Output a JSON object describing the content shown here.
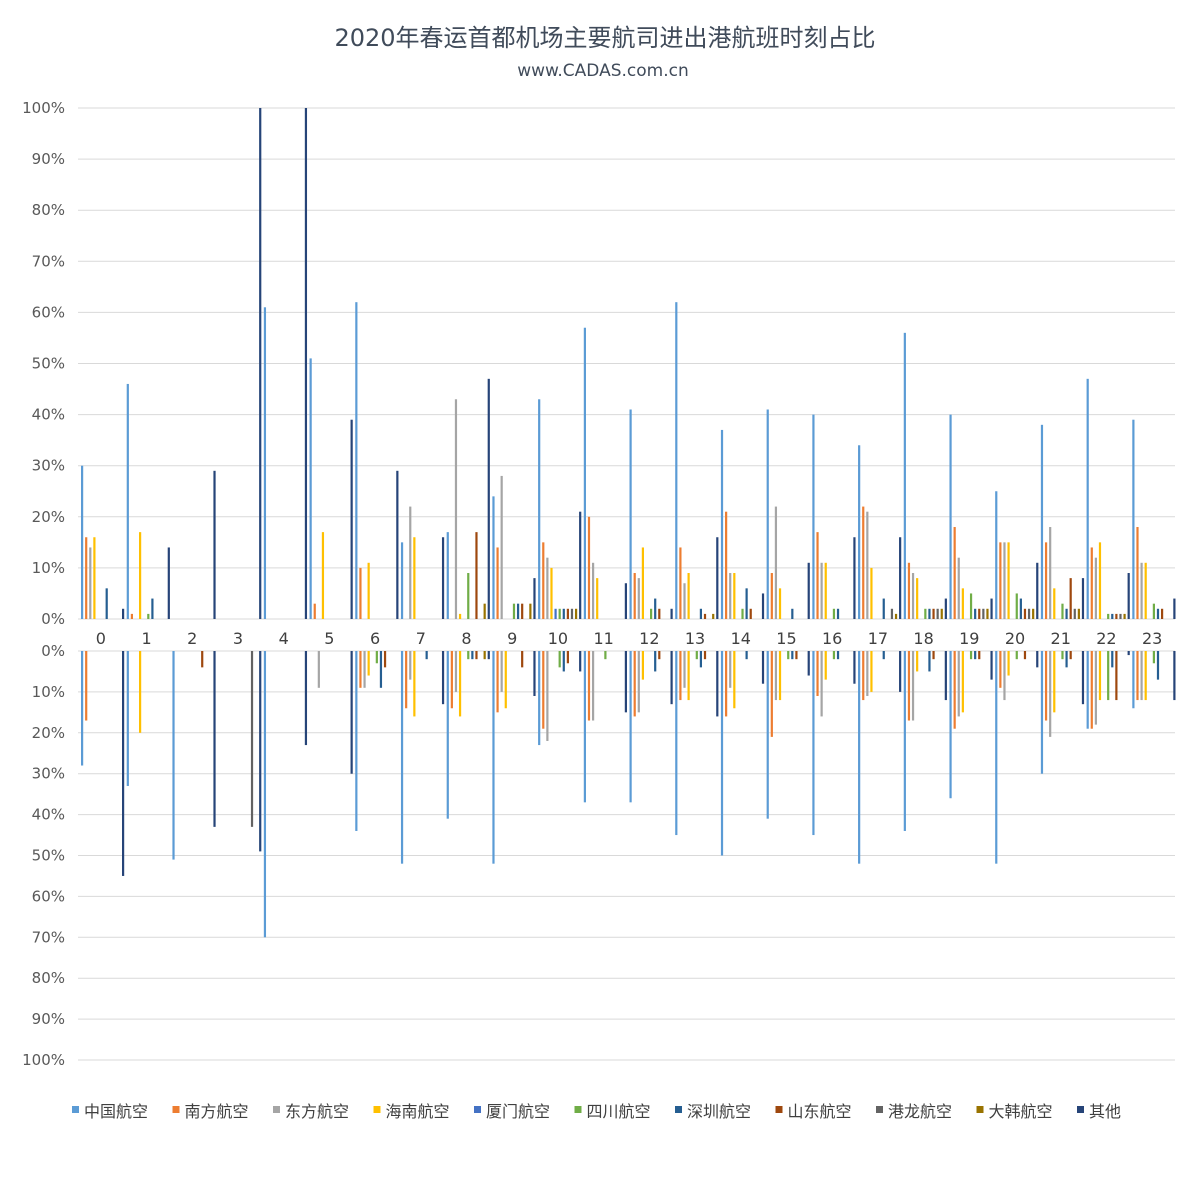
{
  "chart_data": {
    "type": "bar",
    "title": "2020年春运首都机场主要航司进出港航班时刻占比",
    "subtitle": "www.CADAS.com.cn",
    "categories": [
      "0",
      "1",
      "2",
      "3",
      "4",
      "5",
      "6",
      "7",
      "8",
      "9",
      "10",
      "11",
      "12",
      "13",
      "14",
      "15",
      "16",
      "17",
      "18",
      "19",
      "20",
      "21",
      "22",
      "23"
    ],
    "ylim": [
      0,
      100
    ],
    "ytick_labels": [
      "0%",
      "10%",
      "20%",
      "30%",
      "40%",
      "50%",
      "60%",
      "70%",
      "80%",
      "90%",
      "100%"
    ],
    "panels": [
      "top",
      "bottom"
    ],
    "legend_position": "bottom",
    "grid": true,
    "series": [
      {
        "name": "中国航空",
        "color": "#5b9bd5",
        "top": [
          30,
          46,
          0,
          0,
          61,
          51,
          62,
          15,
          17,
          24,
          43,
          57,
          41,
          62,
          37,
          41,
          40,
          34,
          56,
          40,
          25,
          38,
          47,
          39
        ],
        "bottom": [
          28,
          33,
          51,
          0,
          70,
          0,
          44,
          52,
          41,
          52,
          23,
          37,
          37,
          45,
          50,
          41,
          45,
          52,
          44,
          36,
          52,
          30,
          19,
          14
        ]
      },
      {
        "name": "南方航空",
        "color": "#ed7d31",
        "top": [
          16,
          1,
          0,
          0,
          0,
          3,
          10,
          0,
          0,
          14,
          15,
          20,
          9,
          14,
          21,
          9,
          17,
          22,
          11,
          18,
          15,
          15,
          14,
          18
        ],
        "bottom": [
          17,
          0,
          0,
          0,
          0,
          0,
          9,
          14,
          14,
          15,
          19,
          17,
          16,
          12,
          16,
          21,
          11,
          12,
          17,
          19,
          9,
          17,
          19,
          12
        ]
      },
      {
        "name": "东方航空",
        "color": "#a5a5a5",
        "top": [
          14,
          0,
          0,
          0,
          0,
          0,
          0,
          22,
          43,
          28,
          12,
          11,
          8,
          7,
          9,
          22,
          11,
          21,
          9,
          12,
          15,
          18,
          12,
          11
        ],
        "bottom": [
          0,
          0,
          0,
          0,
          0,
          9,
          9,
          7,
          10,
          10,
          22,
          17,
          15,
          9,
          9,
          12,
          16,
          11,
          17,
          16,
          12,
          21,
          18,
          12
        ]
      },
      {
        "name": "海南航空",
        "color": "#ffc000",
        "top": [
          16,
          17,
          0,
          0,
          0,
          17,
          11,
          16,
          1,
          0,
          10,
          8,
          14,
          9,
          9,
          6,
          11,
          10,
          8,
          6,
          15,
          6,
          15,
          11
        ],
        "bottom": [
          0,
          20,
          0,
          0,
          0,
          0,
          6,
          16,
          16,
          14,
          0,
          0,
          7,
          12,
          14,
          12,
          7,
          10,
          5,
          15,
          6,
          15,
          12,
          12
        ]
      },
      {
        "name": "厦门航空",
        "color": "#4472c4",
        "top": [
          0,
          0,
          0,
          0,
          0,
          0,
          0,
          0,
          0,
          0,
          2,
          0,
          0,
          0,
          0,
          0,
          0,
          0,
          0,
          0,
          0,
          0,
          0,
          0
        ],
        "bottom": [
          0,
          0,
          0,
          0,
          0,
          0,
          0,
          0,
          0,
          0,
          0,
          0,
          0,
          0,
          0,
          0,
          0,
          0,
          0,
          0,
          0,
          0,
          0,
          0
        ]
      },
      {
        "name": "四川航空",
        "color": "#70ad47",
        "top": [
          0,
          1,
          0,
          0,
          0,
          0,
          0,
          0,
          9,
          3,
          2,
          0,
          2,
          0,
          2,
          0,
          2,
          0,
          2,
          5,
          5,
          3,
          1,
          3
        ],
        "bottom": [
          0,
          0,
          0,
          0,
          0,
          0,
          3,
          0,
          2,
          0,
          4,
          2,
          0,
          2,
          0,
          2,
          2,
          0,
          0,
          2,
          2,
          2,
          12,
          3
        ]
      },
      {
        "name": "深圳航空",
        "color": "#255e91",
        "top": [
          6,
          4,
          0,
          0,
          0,
          0,
          0,
          0,
          0,
          3,
          2,
          0,
          4,
          2,
          6,
          2,
          2,
          4,
          2,
          2,
          4,
          2,
          1,
          2
        ],
        "bottom": [
          0,
          0,
          0,
          0,
          0,
          0,
          9,
          2,
          2,
          0,
          5,
          0,
          5,
          4,
          2,
          2,
          2,
          2,
          5,
          2,
          0,
          4,
          4,
          7
        ]
      },
      {
        "name": "山东航空",
        "color": "#9e480e",
        "top": [
          0,
          0,
          0,
          0,
          0,
          0,
          0,
          0,
          17,
          3,
          2,
          0,
          2,
          1,
          2,
          0,
          0,
          0,
          2,
          2,
          2,
          8,
          1,
          2
        ],
        "bottom": [
          0,
          0,
          4,
          0,
          0,
          0,
          4,
          0,
          2,
          4,
          3,
          0,
          2,
          2,
          0,
          2,
          0,
          0,
          2,
          2,
          2,
          2,
          12,
          0
        ]
      },
      {
        "name": "港龙航空",
        "color": "#636363",
        "top": [
          0,
          0,
          0,
          0,
          0,
          0,
          0,
          0,
          0,
          0,
          2,
          0,
          0,
          0,
          0,
          0,
          0,
          2,
          2,
          2,
          2,
          2,
          1,
          0
        ],
        "bottom": [
          0,
          0,
          0,
          43,
          0,
          0,
          0,
          0,
          0,
          0,
          0,
          0,
          0,
          0,
          0,
          0,
          0,
          0,
          0,
          0,
          0,
          0,
          0,
          0
        ]
      },
      {
        "name": "大韩航空",
        "color": "#997300",
        "top": [
          0,
          0,
          0,
          0,
          0,
          0,
          0,
          0,
          3,
          3,
          2,
          0,
          0,
          1,
          0,
          0,
          0,
          1,
          2,
          2,
          2,
          2,
          1,
          0
        ],
        "bottom": [
          0,
          0,
          0,
          0,
          0,
          0,
          0,
          0,
          2,
          0,
          0,
          0,
          0,
          0,
          0,
          0,
          0,
          0,
          0,
          0,
          0,
          0,
          0,
          0
        ]
      },
      {
        "name": "其他",
        "color": "#264478",
        "top": [
          2,
          14,
          29,
          100,
          100,
          39,
          29,
          16,
          47,
          8,
          21,
          7,
          2,
          16,
          5,
          11,
          16,
          16,
          4,
          4,
          11,
          8,
          9,
          4
        ],
        "bottom": [
          55,
          0,
          43,
          49,
          23,
          30,
          0,
          13,
          2,
          11,
          5,
          15,
          13,
          16,
          8,
          6,
          8,
          10,
          12,
          7,
          4,
          13,
          1,
          12
        ]
      }
    ]
  }
}
